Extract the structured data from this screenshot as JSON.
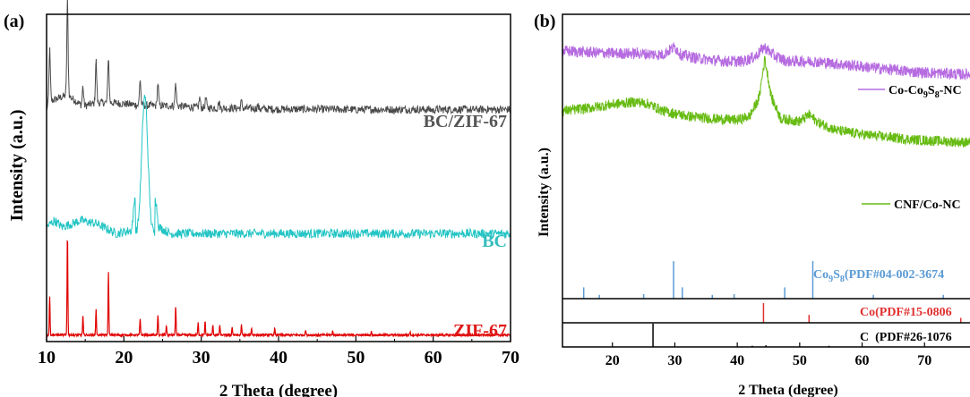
{
  "chart_data": [
    {
      "panel_label": "(a)",
      "type": "line",
      "xlabel": "2 Theta (degree)",
      "ylabel": "Intensity (a.u.)",
      "xlim": [
        10,
        70
      ],
      "xticks": [
        10,
        20,
        30,
        40,
        50,
        60,
        70
      ],
      "yticks_shown": false,
      "grid": false,
      "series": [
        {
          "name": "BC/ZIF-67",
          "color": "#4a4a4a",
          "label_color": "#555555",
          "baseline": 0.71,
          "noise": 0.012,
          "x": [
            10,
            10.4,
            12.7,
            14.7,
            16.4,
            18.0,
            22.1,
            24.4,
            26.7,
            29.8,
            30.6,
            32.3,
            35.2,
            37.3,
            40,
            45,
            50,
            55,
            60,
            65,
            70
          ],
          "y": [
            0.71,
            0.87,
            1.0,
            0.77,
            0.84,
            0.85,
            0.79,
            0.78,
            0.78,
            0.74,
            0.74,
            0.73,
            0.73,
            0.72,
            0.71,
            0.71,
            0.705,
            0.705,
            0.705,
            0.705,
            0.705
          ],
          "hump": {
            "center": 22.5,
            "width": 1.5,
            "height": 0.04
          }
        },
        {
          "name": "BC",
          "color": "#22c4c4",
          "label_color": "#33bdbd",
          "baseline": 0.33,
          "noise": 0.014,
          "x": [
            10,
            11,
            12,
            14.5,
            16.5,
            19,
            21,
            22.7,
            24.5,
            26,
            28,
            30,
            40,
            50,
            60,
            70
          ],
          "y": [
            0.35,
            0.37,
            0.35,
            0.37,
            0.36,
            0.33,
            0.34,
            0.75,
            0.35,
            0.33,
            0.33,
            0.33,
            0.33,
            0.33,
            0.33,
            0.33
          ]
        },
        {
          "name": "ZIF-67",
          "color": "#e00000",
          "label_color": "#e01818",
          "baseline": 0.02,
          "noise": 0.003,
          "peaks_x": [
            10.4,
            12.7,
            14.7,
            16.4,
            18.0,
            22.1,
            24.4,
            25.5,
            26.7,
            29.6,
            30.5,
            31.5,
            32.4,
            34.0,
            35.2,
            36.5,
            39.5,
            43.5,
            47.0,
            52.0,
            57.0
          ],
          "peaks_y": [
            0.12,
            0.31,
            0.06,
            0.08,
            0.19,
            0.05,
            0.06,
            0.03,
            0.09,
            0.04,
            0.04,
            0.03,
            0.03,
            0.025,
            0.03,
            0.02,
            0.02,
            0.015,
            0.012,
            0.01,
            0.01
          ]
        }
      ]
    },
    {
      "panel_label": "(b)",
      "type": "line",
      "xlabel": "2 Theta (degree)",
      "ylabel": "Intensity (a.u.)",
      "xlim": [
        12,
        78
      ],
      "xticks": [
        20,
        30,
        40,
        50,
        60,
        70
      ],
      "yticks_shown": false,
      "grid": false,
      "series": [
        {
          "name": "Co-Co9S8-NC",
          "label_main": "Co-Co",
          "label_sub1": "9",
          "label_mid": "S",
          "label_sub2": "8",
          "label_end": "-NC",
          "color": "#b66be0",
          "x": [
            12,
            16,
            20,
            24,
            28,
            30,
            31,
            34,
            38,
            41,
            43,
            44.3,
            46,
            48,
            52,
            56,
            60,
            64,
            68,
            72,
            76,
            78
          ],
          "y": [
            0.86,
            0.855,
            0.85,
            0.85,
            0.845,
            0.875,
            0.845,
            0.83,
            0.82,
            0.82,
            0.84,
            0.875,
            0.84,
            0.82,
            0.82,
            0.81,
            0.8,
            0.79,
            0.78,
            0.775,
            0.77,
            0.77
          ],
          "noise": 0.022
        },
        {
          "name": "CNF/Co-NC",
          "color": "#66bb11",
          "x": [
            12,
            16,
            20,
            24,
            26,
            28,
            32,
            36,
            40,
            42,
            43.5,
            44.4,
            45.5,
            47,
            50,
            51.5,
            53,
            56,
            60,
            64,
            68,
            72,
            76,
            78
          ],
          "y": [
            0.63,
            0.64,
            0.655,
            0.665,
            0.655,
            0.63,
            0.61,
            0.6,
            0.595,
            0.61,
            0.68,
            0.83,
            0.68,
            0.6,
            0.59,
            0.615,
            0.585,
            0.555,
            0.54,
            0.53,
            0.52,
            0.515,
            0.51,
            0.51
          ],
          "noise": 0.02
        }
      ],
      "reference_patterns": [
        {
          "name": "Co9S8(PDF#04-002-3674)",
          "label_main": "Co",
          "label_sub1": "9",
          "label_mid": "S",
          "label_sub2": "8",
          "label_end": "(PDF#04-002-3674",
          "color": "#5b9bd5",
          "x": [
            15.4,
            17.9,
            25.0,
            29.8,
            31.2,
            36.0,
            39.5,
            47.6,
            52.1,
            61.8,
            73.0
          ],
          "y": [
            0.3,
            0.1,
            0.12,
            1.0,
            0.3,
            0.1,
            0.12,
            0.3,
            1.0,
            0.1,
            0.1
          ]
        },
        {
          "name": "Co(PDF#15-0806)",
          "label_text": "Co(PDF#15-0806",
          "color": "#e03030",
          "x": [
            44.2,
            51.5,
            75.8
          ],
          "y": [
            1.0,
            0.4,
            0.25
          ]
        },
        {
          "name": "C (PDF#26-1076)",
          "label_text": "C  (PDF#26-1076",
          "color": "#000000",
          "x": [
            26.5,
            42.4,
            44.6,
            54.7,
            77.4
          ],
          "y": [
            1.0,
            0.05,
            0.07,
            0.05,
            0.05
          ]
        }
      ]
    }
  ]
}
